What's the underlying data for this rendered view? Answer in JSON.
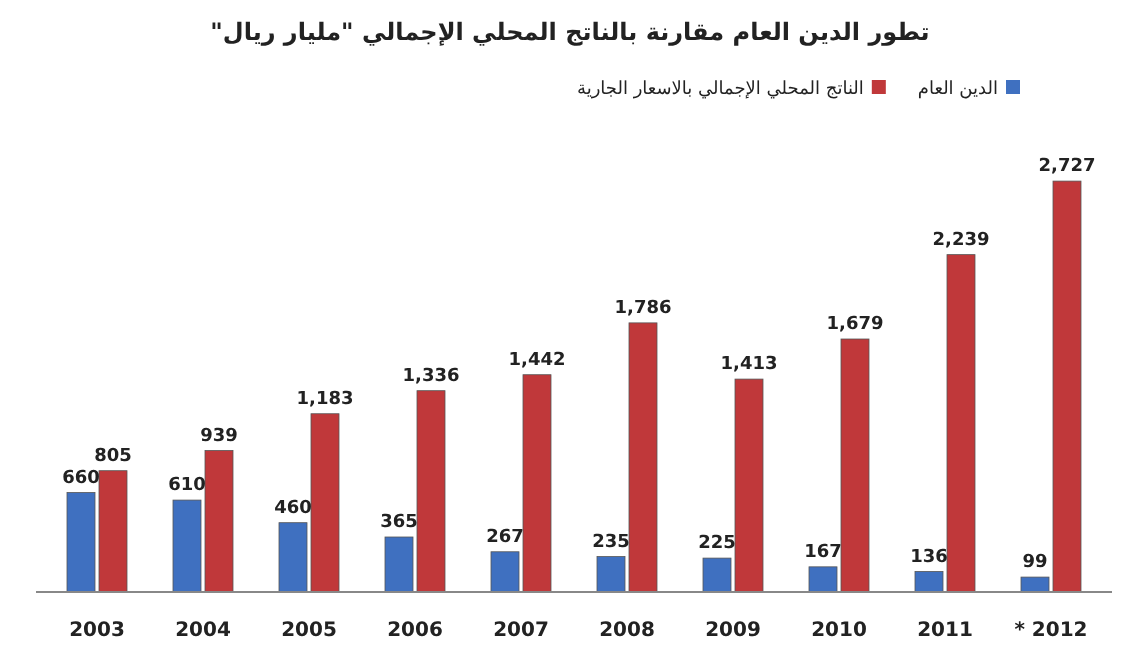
{
  "chart_data": {
    "type": "bar",
    "title": "تطور الدين العام مقارنة بالناتج المحلي الإجمالي \"مليار ريال\"",
    "categories": [
      "2003",
      "2004",
      "2005",
      "2006",
      "2007",
      "2008",
      "2009",
      "2010",
      "2011",
      "* 2012"
    ],
    "series": [
      {
        "name": "الدين العام",
        "color": "#3f70c0",
        "values": [
          660,
          610,
          460,
          365,
          267,
          235,
          225,
          167,
          136,
          99
        ],
        "value_labels": [
          "660",
          "610",
          "460",
          "365",
          "267",
          "235",
          "225",
          "167",
          "136",
          "99"
        ]
      },
      {
        "name": "الناتج المحلي الإجمالي بالاسعار الجارية",
        "color": "#c0383a",
        "values": [
          805,
          939,
          1183,
          1336,
          1442,
          1786,
          1413,
          1679,
          2239,
          2727
        ],
        "value_labels": [
          "805",
          "939",
          "1,183",
          "1,336",
          "1,442",
          "1,786",
          "1,413",
          "1,679",
          "2,239",
          "2,727"
        ]
      }
    ],
    "legend": "top right"
  }
}
